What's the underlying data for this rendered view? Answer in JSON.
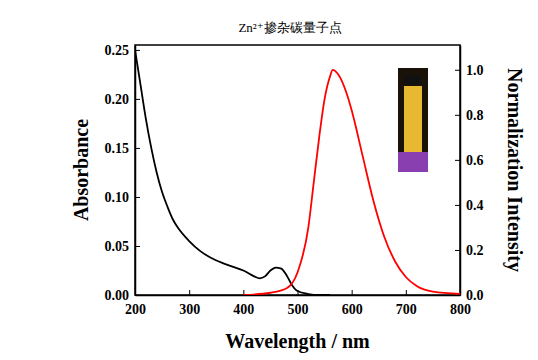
{
  "chart_data": {
    "type": "line",
    "title": "Zn²⁺掺杂碳量子点",
    "x_label": "Wavelength / nm",
    "y_label": "Absorbance",
    "y2_label": "Normalization Intensity",
    "xlim": [
      200,
      800
    ],
    "xticks": [
      200,
      300,
      400,
      500,
      600,
      700,
      800
    ],
    "ylim": [
      0,
      0.255
    ],
    "yticks": [
      {
        "value": 0,
        "label": "0.00"
      },
      {
        "value": 0.05,
        "label": "0.05"
      },
      {
        "value": 0.1,
        "label": "0.10"
      },
      {
        "value": 0.15,
        "label": "0.15"
      },
      {
        "value": 0.2,
        "label": "0.20"
      },
      {
        "value": 0.25,
        "label": "0.25"
      }
    ],
    "y2lim": [
      0,
      1.11
    ],
    "y2ticks": [
      {
        "value": 0,
        "label": "0.0"
      },
      0.2,
      0.4,
      0.6,
      0.8,
      {
        "value": 1,
        "label": "1.0"
      }
    ],
    "grid": false,
    "series": [
      {
        "color": "#000000",
        "axis": "y",
        "line_style": "solid",
        "x": [
          200,
          210,
          220,
          230,
          240,
          250,
          260,
          270,
          280,
          300,
          320,
          340,
          360,
          380,
          400,
          420,
          430,
          440,
          450,
          460,
          470,
          480,
          490,
          500,
          520,
          540,
          560
        ],
        "values": [
          0.25,
          0.215,
          0.18,
          0.15,
          0.125,
          0.105,
          0.09,
          0.077,
          0.068,
          0.055,
          0.045,
          0.038,
          0.033,
          0.029,
          0.025,
          0.019,
          0.017,
          0.019,
          0.025,
          0.028,
          0.027,
          0.02,
          0.01,
          0.004,
          0.001,
          0,
          0
        ]
      },
      {
        "color": "#ff0000",
        "axis": "y2",
        "line_style": "solid",
        "x": [
          400,
          450,
          480,
          500,
          520,
          530,
          540,
          550,
          560,
          565,
          575,
          590,
          600,
          620,
          640,
          660,
          680,
          700,
          720,
          750,
          800
        ],
        "values": [
          0,
          0.01,
          0.03,
          0.1,
          0.3,
          0.5,
          0.7,
          0.87,
          0.97,
          1.0,
          0.98,
          0.9,
          0.82,
          0.62,
          0.42,
          0.26,
          0.15,
          0.08,
          0.04,
          0.015,
          0.005
        ]
      }
    ]
  }
}
